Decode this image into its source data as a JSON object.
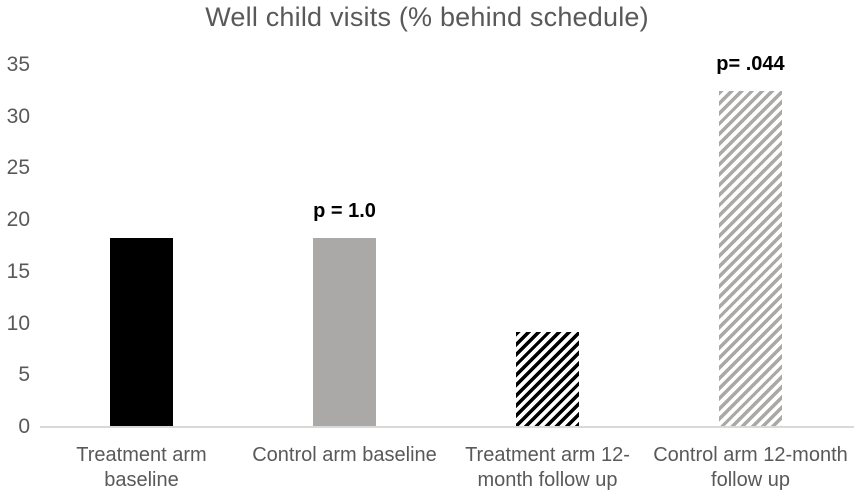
{
  "chart_data": {
    "type": "bar",
    "title": "Well child visits (% behind schedule)",
    "categories": [
      "Treatment arm baseline",
      "Control arm baseline",
      "Treatment arm 12-month follow up",
      "Control arm 12-month follow up"
    ],
    "category_label_lines": [
      [
        "Treatment arm",
        "baseline"
      ],
      [
        "Control arm baseline"
      ],
      [
        "Treatment arm 12-",
        "month follow up"
      ],
      [
        "Control arm 12-month",
        "follow up"
      ]
    ],
    "values": [
      18.2,
      18.2,
      9.1,
      32.4
    ],
    "annotations": [
      {
        "category_index": 1,
        "text": "p = 1.0"
      },
      {
        "category_index": 3,
        "text": "p= .044"
      }
    ],
    "xlabel": "",
    "ylabel": "",
    "ylim": [
      0,
      35
    ],
    "yticks": [
      0,
      5,
      10,
      15,
      20,
      25,
      30,
      35
    ],
    "grid": false,
    "legend": false,
    "bar_styles": [
      {
        "fill": "solid",
        "color": "#000000"
      },
      {
        "fill": "solid",
        "color": "#ABA9A7"
      },
      {
        "fill": "hatch",
        "color": "#000000"
      },
      {
        "fill": "hatch",
        "color": "#ABA9A7"
      }
    ],
    "colors": {
      "title_text": "#595959",
      "tick_text": "#595959",
      "annotation_text": "#000000",
      "axis_line": "#D9D9D9",
      "background": "#FFFFFF"
    }
  }
}
